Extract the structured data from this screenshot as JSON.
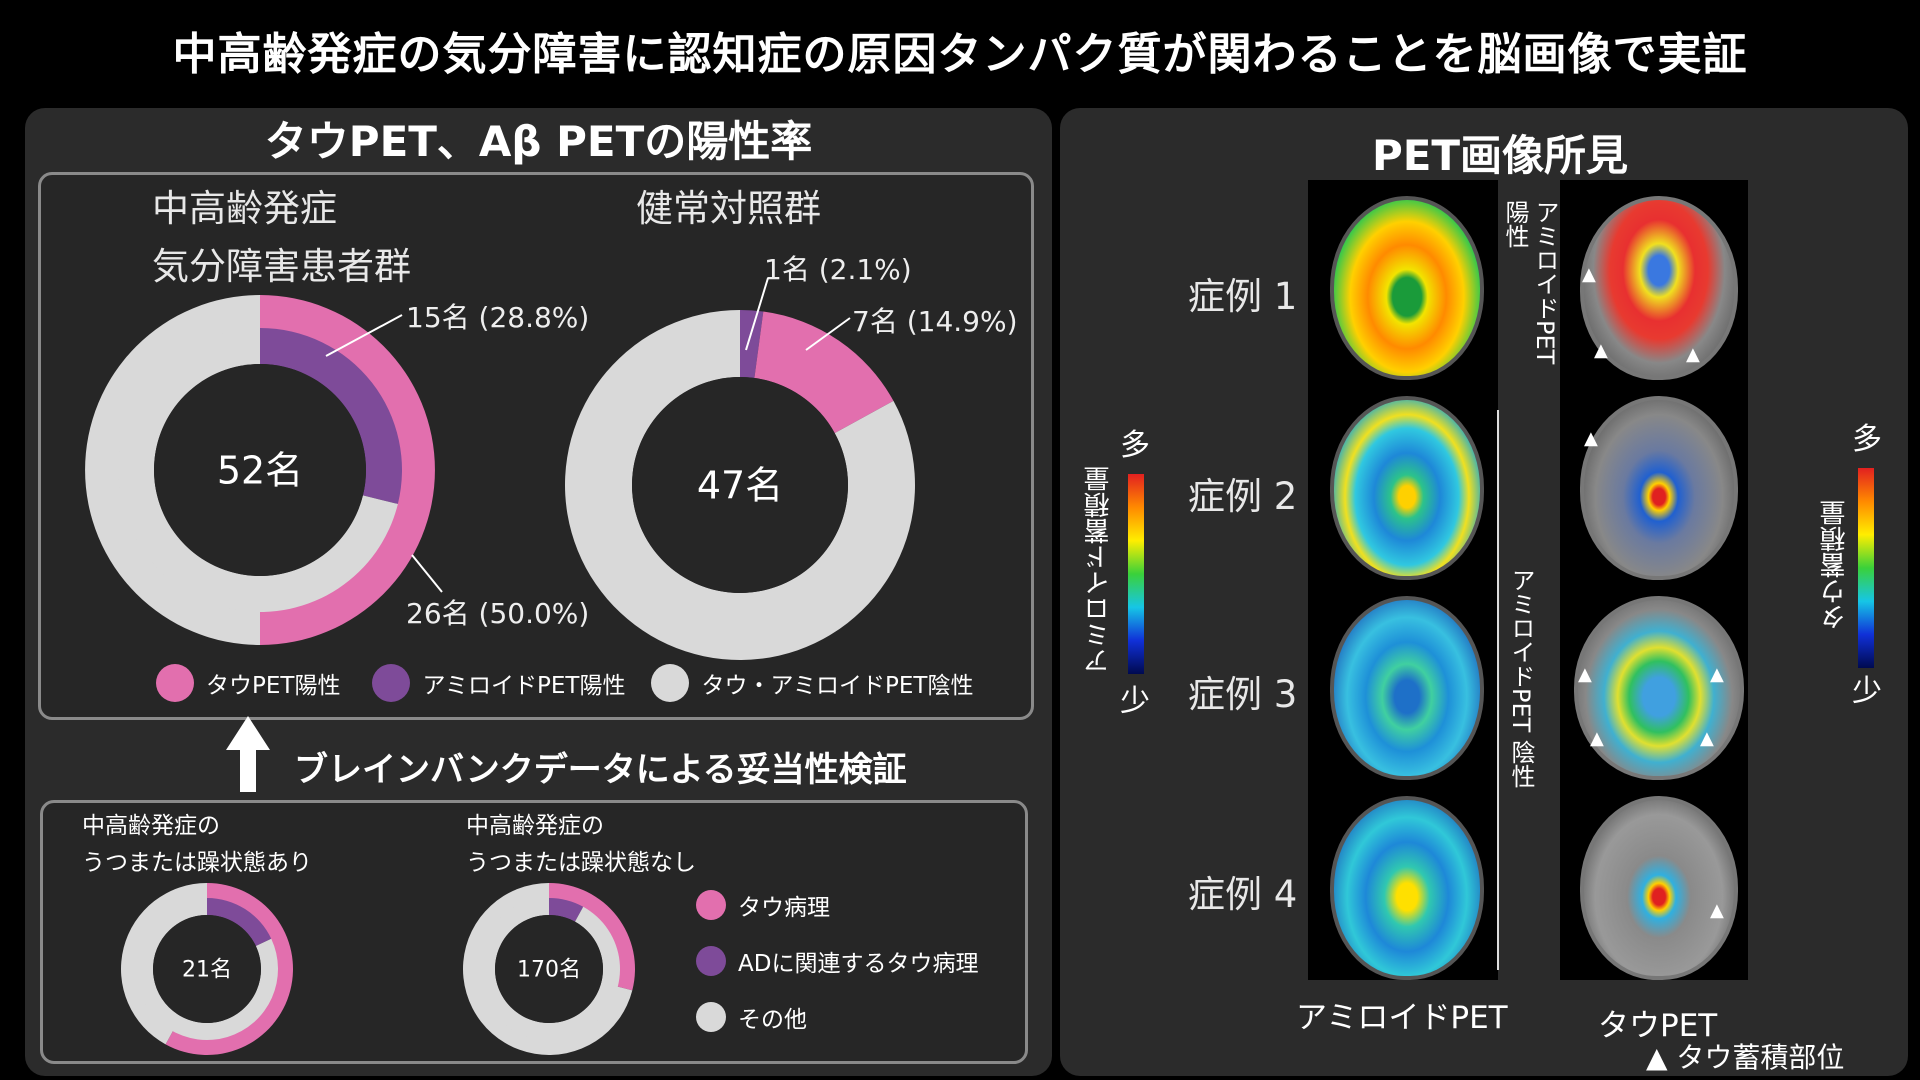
{
  "title": "中高齢発症の気分障害に認知症の原因タンパク質が関わることを脳画像で実証",
  "left_heading": "タウPET、Aβ PETの陽性率",
  "right_heading": "PET画像所見",
  "arrow_label": "ブレインバンクデータによる妥当性検証",
  "colors": {
    "tau": "#e26fae",
    "amyloid": "#7e4b99",
    "negative": "#d9d9d9",
    "panel": "#2b2b2b"
  },
  "chart_data": [
    {
      "type": "pie",
      "title": "中高齢発症 気分障害患者群",
      "title_lines": [
        "中高齢発症",
        "気分障害患者群"
      ],
      "center_label": "52名",
      "outer_ring": [
        {
          "name": "タウPET陽性",
          "value": 26
        },
        {
          "name": "タウ・アミロイドPET陰性",
          "value": 26
        }
      ],
      "inner_ring": [
        {
          "name": "アミロイドPET陽性",
          "value": 15
        },
        {
          "name": "タウ・アミロイドPET陰性",
          "value": 37
        }
      ],
      "annotations": [
        "15名 (28.8%)",
        "26名 (50.0%)"
      ]
    },
    {
      "type": "pie",
      "title": "健常対照群",
      "center_label": "47名",
      "ring": [
        {
          "name": "アミロイドPET陽性",
          "value": 1
        },
        {
          "name": "タウPET陽性",
          "value": 7
        },
        {
          "name": "タウ・アミロイドPET陰性",
          "value": 39
        }
      ],
      "annotations": [
        "1名 (2.1%)",
        "7名 (14.9%)"
      ]
    },
    {
      "type": "pie",
      "title": "中高齢発症の うつまたは躁状態あり",
      "title_lines": [
        "中高齢発症の",
        "うつまたは躁状態あり"
      ],
      "center_label": "21名",
      "outer_ring": [
        {
          "name": "タウ病理",
          "value": 0.58
        },
        {
          "name": "その他",
          "value": 0.42
        }
      ],
      "inner_ring": [
        {
          "name": "ADに関連するタウ病理",
          "value": 0.18
        },
        {
          "name": "その他",
          "value": 0.82
        }
      ]
    },
    {
      "type": "pie",
      "title": "中高齢発症の うつまたは躁状態なし",
      "title_lines": [
        "中高齢発症の",
        "うつまたは躁状態なし"
      ],
      "center_label": "170名",
      "outer_ring": [
        {
          "name": "タウ病理",
          "value": 0.29
        },
        {
          "name": "その他",
          "value": 0.71
        }
      ],
      "inner_ring": [
        {
          "name": "ADに関連するタウ病理",
          "value": 0.08
        },
        {
          "name": "その他",
          "value": 0.92
        }
      ]
    }
  ],
  "legend_top": [
    "タウPET陽性",
    "アミロイドPET陽性",
    "タウ・アミロイドPET陰性"
  ],
  "legend_bottom": [
    "タウ病理",
    "ADに関連するタウ病理",
    "その他"
  ],
  "cases": [
    "症例 1",
    "症例 2",
    "症例 3",
    "症例 4"
  ],
  "col_amyloid": "アミロイドPET",
  "col_tau": "タウPET",
  "tau_marker": "▲ タウ蓄積部位",
  "amyloid_pos": "アミロイドPET 陽性",
  "amyloid_neg": "アミロイドPET 陰性",
  "amyloid_scale": "アミロイド蓄積量",
  "tau_scale": "タウ蓄積量",
  "scale_high": "多",
  "scale_low": "少"
}
